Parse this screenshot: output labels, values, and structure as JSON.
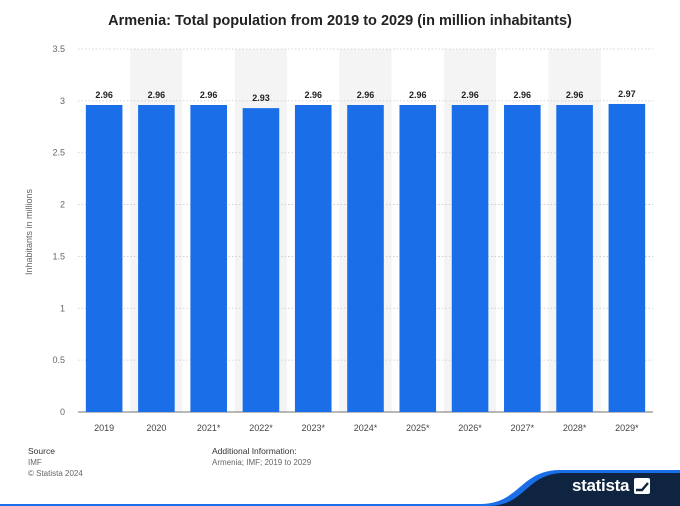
{
  "title": "Armenia: Total population from 2019 to 2029 (in million inhabitants)",
  "chart_data": {
    "type": "bar",
    "categories": [
      "2019",
      "2020",
      "2021*",
      "2022*",
      "2023*",
      "2024*",
      "2025*",
      "2026*",
      "2027*",
      "2028*",
      "2029*"
    ],
    "values": [
      2.96,
      2.96,
      2.96,
      2.93,
      2.96,
      2.96,
      2.96,
      2.96,
      2.96,
      2.96,
      2.97
    ],
    "value_labels": [
      "2.96",
      "2.96",
      "2.96",
      "2.93",
      "2.96",
      "2.96",
      "2.96",
      "2.96",
      "2.96",
      "2.96",
      "2.97"
    ],
    "ylabel": "Inhabitants in millions",
    "ylim": [
      0,
      3.5
    ],
    "yticks": [
      "0",
      "0.5",
      "1",
      "1.5",
      "2",
      "2.5",
      "3",
      "3.5"
    ],
    "grid": true,
    "bar_color": "#1a6ee8",
    "alt_column_shading": "#f4f4f4"
  },
  "footer": {
    "source_heading": "Source",
    "source_value": "IMF",
    "copyright": "© Statista 2024",
    "additional_heading": "Additional Information:",
    "additional_value": "Armenia; IMF; 2019 to 2029"
  },
  "brand": {
    "name": "statista",
    "band_color": "#0e2440",
    "accent_color": "#1a6ee8"
  }
}
